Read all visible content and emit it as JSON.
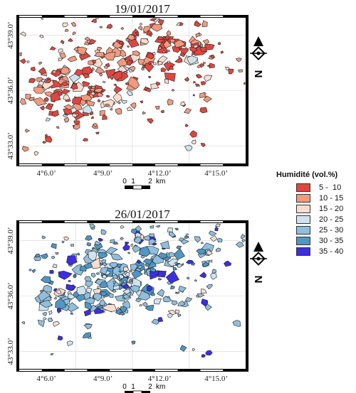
{
  "maps": [
    {
      "title": "19/01/2017",
      "palette": "warm",
      "x_ticks": [
        "4°6.0’",
        "4°9.0’",
        "4°12.0’",
        "4°15.0’"
      ],
      "y_ticks": [
        "43°39.0’",
        "43°36.0’",
        "43°33.0’"
      ],
      "scale_ticks": [
        "0",
        "1",
        "2"
      ],
      "scale_unit": "km",
      "north_label": "N"
    },
    {
      "title": "26/01/2017",
      "palette": "cool",
      "x_ticks": [
        "4°6.0’",
        "4°9.0’",
        "4°12.0’",
        "4°15.0’"
      ],
      "y_ticks": [
        "43°39.0’",
        "43°36.0’",
        "43°33.0’"
      ],
      "scale_ticks": [
        "0",
        "1",
        "2"
      ],
      "scale_unit": "km",
      "north_label": "N"
    }
  ],
  "legend": {
    "title": "Humidité (vol.%)",
    "classes": [
      {
        "label": "5 -  10",
        "color": "#e0463f"
      },
      {
        "label": "10 - 15",
        "color": "#f19a7e"
      },
      {
        "label": "15 - 20",
        "color": "#f8ddd0"
      },
      {
        "label": "20 - 25",
        "color": "#cfe2ee"
      },
      {
        "label": "25 - 30",
        "color": "#8fbfdc"
      },
      {
        "label": "30 - 35",
        "color": "#4f96c5"
      },
      {
        "label": "35 - 40",
        "color": "#3d2ee0"
      }
    ]
  }
}
